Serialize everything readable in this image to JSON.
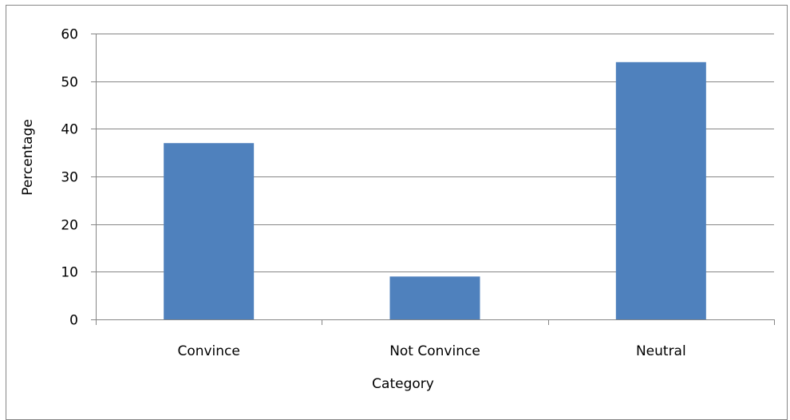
{
  "chart_data": {
    "type": "bar",
    "categories": [
      "Convince",
      "Not Convince",
      "Neutral"
    ],
    "values": [
      37,
      9,
      54
    ],
    "title": "",
    "xlabel": "Category",
    "ylabel": "Percentage",
    "ylim": [
      0,
      60
    ],
    "yticks": [
      0,
      10,
      20,
      30,
      40,
      50,
      60
    ],
    "grid": true,
    "legend": "none",
    "bar_color": "#4f81bd",
    "gridline_color": "#868686"
  }
}
